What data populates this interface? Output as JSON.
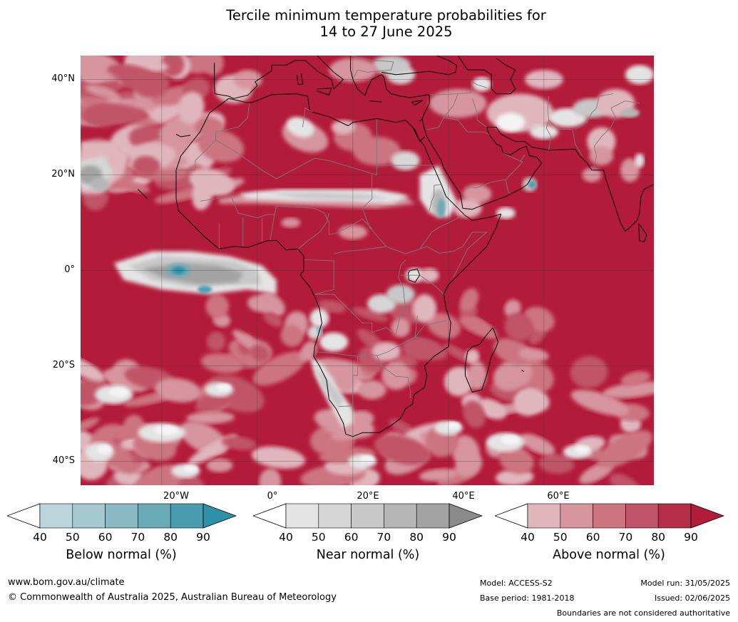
{
  "title": {
    "line1": "Tercile minimum temperature probabilities for",
    "line2": "14 to 27 June 2025"
  },
  "map": {
    "lat_labels": [
      "40°N",
      "20°N",
      "0°",
      "20°S",
      "40°S"
    ],
    "lon_labels": [
      "20°W",
      "0°",
      "20°E",
      "40°E",
      "60°E"
    ],
    "colors": {
      "ocean_base": "#b31b3a",
      "above_levels": [
        "#e0b6bd",
        "#d6959f",
        "#cc7580",
        "#c05468",
        "#b42e48",
        "#b31b3a"
      ],
      "near_levels": [
        "#e4e4e4",
        "#d6d6d6",
        "#c8c8c8",
        "#b6b6b6",
        "#a3a3a3",
        "#8a8a8a"
      ],
      "below_levels": [
        "#bcd4db",
        "#a6c8cf",
        "#8ab8c3",
        "#6aaab6",
        "#4a9daf",
        "#2f8fa8"
      ],
      "gridline": "#333333",
      "coastline": "#000000",
      "border": "#7a7a7a"
    }
  },
  "colorbars": [
    {
      "label": "Below normal (%)",
      "ticks": [
        "40",
        "50",
        "60",
        "70",
        "80",
        "90"
      ],
      "colors": [
        "#ffffff",
        "#bcd4db",
        "#a6c8cf",
        "#8ab8c3",
        "#6aaab6",
        "#4a9daf",
        "#2f8fa8"
      ]
    },
    {
      "label": "Near normal (%)",
      "ticks": [
        "40",
        "50",
        "60",
        "70",
        "80",
        "90"
      ],
      "colors": [
        "#ffffff",
        "#e4e4e4",
        "#d6d6d6",
        "#c8c8c8",
        "#b6b6b6",
        "#a3a3a3",
        "#8a8a8a"
      ]
    },
    {
      "label": "Above normal (%)",
      "ticks": [
        "40",
        "50",
        "60",
        "70",
        "80",
        "90"
      ],
      "colors": [
        "#ffffff",
        "#e0b6bd",
        "#d6959f",
        "#cc7580",
        "#c05468",
        "#b42e48",
        "#b31b3a"
      ]
    }
  ],
  "footer": {
    "website": "www.bom.gov.au/climate",
    "copyright": "© Commonwealth of Australia 2025, Australian Bureau of Meteorology",
    "model": "Model: ACCESS-S2",
    "base_period": "Base period: 1981-2018",
    "model_run": "Model run: 31/05/2025",
    "issued": "Issued: 02/06/2025",
    "disclaimer": "Boundaries are not considered authoritative"
  }
}
